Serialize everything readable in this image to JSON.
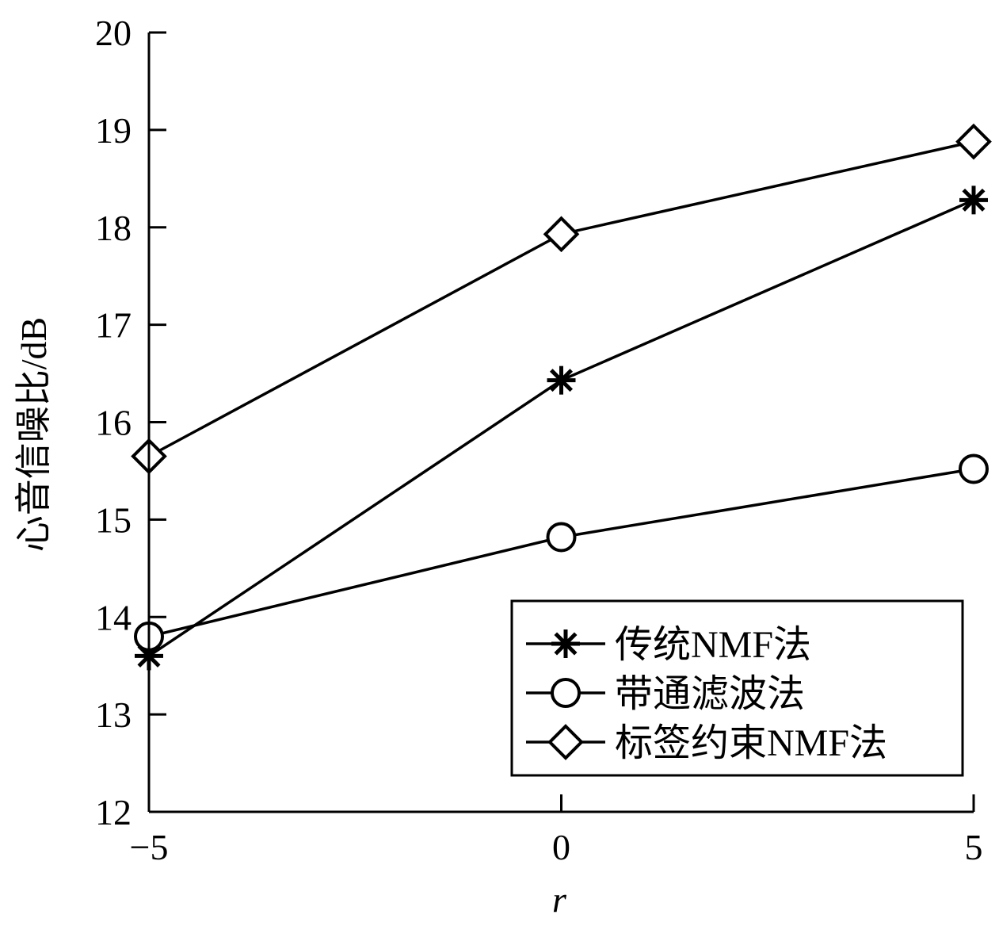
{
  "chart_data": {
    "type": "line",
    "xlabel": "r",
    "ylabel": "心音信噪比/dB",
    "x": [
      -5,
      0,
      5
    ],
    "x_ticks": [
      "−5",
      "0",
      "5"
    ],
    "y_ticks": [
      "12",
      "13",
      "14",
      "15",
      "16",
      "17",
      "18",
      "19",
      "20"
    ],
    "xlim": [
      -5,
      5
    ],
    "ylim": [
      12,
      20
    ],
    "grid": false,
    "legend_position": "bottom-right",
    "series": [
      {
        "name": "传统NMF法",
        "marker": "asterisk",
        "values": [
          13.6,
          16.43,
          18.28
        ]
      },
      {
        "name": "带通滤波法",
        "marker": "circle",
        "values": [
          13.8,
          14.82,
          15.52
        ]
      },
      {
        "name": "标签约束NMF法",
        "marker": "diamond",
        "values": [
          15.65,
          17.93,
          18.88
        ]
      }
    ]
  }
}
